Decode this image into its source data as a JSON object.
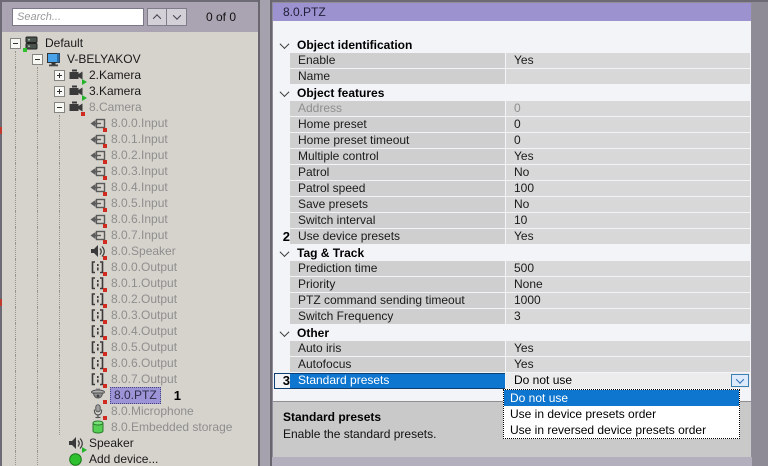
{
  "colors": {
    "accent_blue": "#0f76cf",
    "header_purple": "#9c92d0",
    "tree_selection_lavender": "#9d94d8",
    "status_red": "#cf2b21",
    "status_green": "#2ec02e"
  },
  "sidebar": {
    "search": {
      "placeholder": "Search...",
      "count": "0 of 0"
    },
    "tree": [
      {
        "label": "Default",
        "icon": "server",
        "level": 0,
        "expander": "minus",
        "badge": "green-dot"
      },
      {
        "label": "V-BELYAKOV",
        "icon": "computer",
        "level": 1,
        "expander": "minus"
      },
      {
        "label": "2.Kamera",
        "icon": "camera",
        "level": 2,
        "expander": "plus",
        "badge": "green-arrow"
      },
      {
        "label": "3.Kamera",
        "icon": "camera",
        "level": 2,
        "expander": "plus",
        "badge": "green-arrow"
      },
      {
        "label": "8.Camera",
        "icon": "camera",
        "level": 2,
        "expander": "minus",
        "muted": true,
        "badge": "red"
      },
      {
        "label": "8.0.0.Input",
        "icon": "input",
        "level": 3,
        "muted": true,
        "badge": "red"
      },
      {
        "label": "8.0.1.Input",
        "icon": "input",
        "level": 3,
        "muted": true,
        "badge": "red"
      },
      {
        "label": "8.0.2.Input",
        "icon": "input",
        "level": 3,
        "muted": true,
        "badge": "red"
      },
      {
        "label": "8.0.3.Input",
        "icon": "input",
        "level": 3,
        "muted": true,
        "badge": "red"
      },
      {
        "label": "8.0.4.Input",
        "icon": "input",
        "level": 3,
        "muted": true,
        "badge": "red"
      },
      {
        "label": "8.0.5.Input",
        "icon": "input",
        "level": 3,
        "muted": true,
        "badge": "red"
      },
      {
        "label": "8.0.6.Input",
        "icon": "input",
        "level": 3,
        "muted": true,
        "badge": "red"
      },
      {
        "label": "8.0.7.Input",
        "icon": "input",
        "level": 3,
        "muted": true,
        "badge": "red"
      },
      {
        "label": "8.0.Speaker",
        "icon": "speaker",
        "level": 3,
        "muted": true,
        "badge": "red"
      },
      {
        "label": "8.0.0.Output",
        "icon": "output",
        "level": 3,
        "muted": true,
        "badge": "red"
      },
      {
        "label": "8.0.1.Output",
        "icon": "output",
        "level": 3,
        "muted": true,
        "badge": "red"
      },
      {
        "label": "8.0.2.Output",
        "icon": "output",
        "level": 3,
        "muted": true,
        "badge": "red"
      },
      {
        "label": "8.0.3.Output",
        "icon": "output",
        "level": 3,
        "muted": true,
        "badge": "red"
      },
      {
        "label": "8.0.4.Output",
        "icon": "output",
        "level": 3,
        "muted": true,
        "badge": "red"
      },
      {
        "label": "8.0.5.Output",
        "icon": "output",
        "level": 3,
        "muted": true,
        "badge": "red"
      },
      {
        "label": "8.0.6.Output",
        "icon": "output",
        "level": 3,
        "muted": true,
        "badge": "red"
      },
      {
        "label": "8.0.7.Output",
        "icon": "output",
        "level": 3,
        "muted": true,
        "badge": "red"
      },
      {
        "label": "8.0.PTZ",
        "icon": "ptz",
        "level": 3,
        "muted": true,
        "selected": true,
        "badge": "red",
        "annotation": "1"
      },
      {
        "label": "8.0.Microphone",
        "icon": "microphone",
        "level": 3,
        "muted": true,
        "badge": "red"
      },
      {
        "label": "8.0.Embedded storage",
        "icon": "storage",
        "level": 3,
        "muted": true
      },
      {
        "label": "Speaker",
        "icon": "speaker",
        "level": 2,
        "badge": "green-arrow"
      },
      {
        "label": "Add device...",
        "icon": "add",
        "level": 2
      }
    ]
  },
  "inspector": {
    "title": "8.0.PTZ",
    "rows": [
      {
        "type": "section",
        "label": "Object identification"
      },
      {
        "type": "prop",
        "label": "Enable",
        "value": "Yes"
      },
      {
        "type": "prop",
        "label": "Name",
        "value": ""
      },
      {
        "type": "section",
        "label": "Object features"
      },
      {
        "type": "prop",
        "label": "Address",
        "value": "0",
        "disabled": true
      },
      {
        "type": "prop",
        "label": "Home preset",
        "value": "0"
      },
      {
        "type": "prop",
        "label": "Home preset timeout",
        "value": "0"
      },
      {
        "type": "prop",
        "label": "Multiple control",
        "value": "Yes"
      },
      {
        "type": "prop",
        "label": "Patrol",
        "value": "No"
      },
      {
        "type": "prop",
        "label": "Patrol speed",
        "value": "100"
      },
      {
        "type": "prop",
        "label": "Save presets",
        "value": "No"
      },
      {
        "type": "prop",
        "label": "Switch interval",
        "value": "10"
      },
      {
        "type": "prop",
        "label": "Use device presets",
        "value": "Yes",
        "annotation": "2"
      },
      {
        "type": "section",
        "label": "Tag & Track"
      },
      {
        "type": "prop",
        "label": "Prediction time",
        "value": "500"
      },
      {
        "type": "prop",
        "label": "Priority",
        "value": "None"
      },
      {
        "type": "prop",
        "label": "PTZ command sending timeout",
        "value": "1000"
      },
      {
        "type": "prop",
        "label": "Switch Frequency",
        "value": "3"
      },
      {
        "type": "section",
        "label": "Other"
      },
      {
        "type": "prop",
        "label": "Auto iris",
        "value": "Yes"
      },
      {
        "type": "prop",
        "label": "Autofocus",
        "value": "Yes"
      },
      {
        "type": "prop",
        "label": "Standard presets",
        "value": "Do not use",
        "annotation": "3",
        "selected": true,
        "editor": "combo"
      }
    ],
    "dropdown": {
      "options": [
        "Do not use",
        "Use in device presets order",
        "Use in reversed device presets order"
      ],
      "selected_index": 0
    },
    "description": {
      "title": "Standard presets",
      "text": "Enable the standard presets."
    }
  }
}
